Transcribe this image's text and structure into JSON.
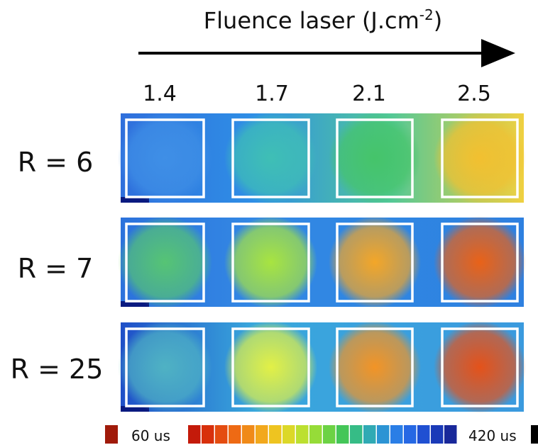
{
  "header": {
    "title": "Fluence laser (J.cm",
    "title_superscript": "-2",
    "title_end": ")"
  },
  "columns": [
    "1.4",
    "1.7",
    "2.1",
    "2.5"
  ],
  "rows": [
    "R = 6",
    "R = 7",
    "R = 25"
  ],
  "colorbar": {
    "min_label": "60 us",
    "max_label": "420 us"
  }
}
